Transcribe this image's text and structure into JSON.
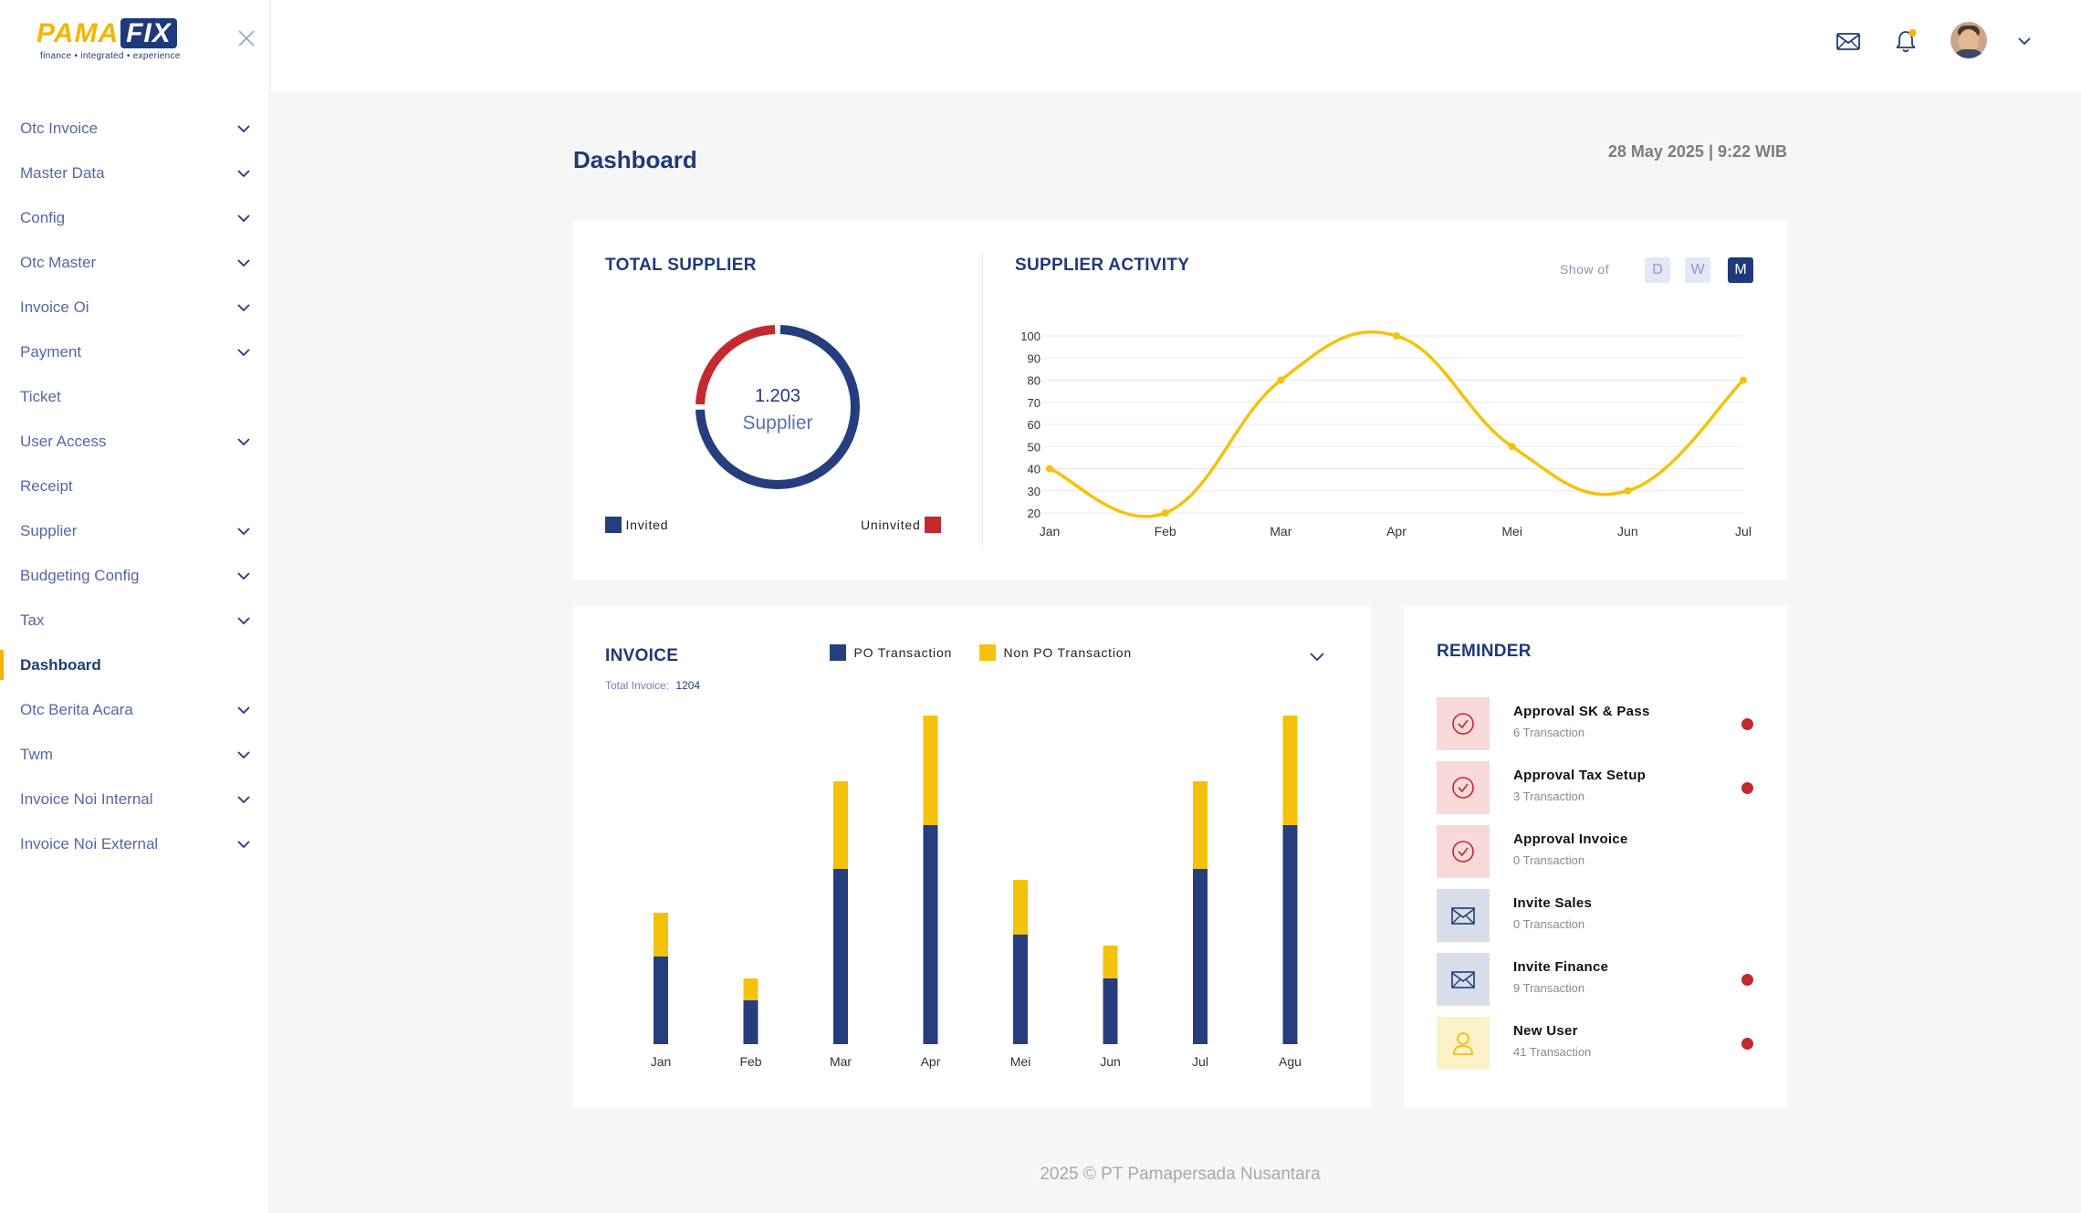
{
  "brand": {
    "name_part1": "PAMA",
    "name_part2": "FIX",
    "tagline": "finance  •  integrated  •  experience"
  },
  "sidebar": {
    "items": [
      {
        "label": "Otc Invoice",
        "expandable": true
      },
      {
        "label": "Master Data",
        "expandable": true
      },
      {
        "label": "Config",
        "expandable": true
      },
      {
        "label": "Otc Master",
        "expandable": true
      },
      {
        "label": "Invoice Oi",
        "expandable": true
      },
      {
        "label": "Payment",
        "expandable": true
      },
      {
        "label": "Ticket",
        "expandable": false
      },
      {
        "label": "User Access",
        "expandable": true
      },
      {
        "label": "Receipt",
        "expandable": false
      },
      {
        "label": "Supplier",
        "expandable": true
      },
      {
        "label": "Budgeting Config",
        "expandable": true
      },
      {
        "label": "Tax",
        "expandable": true
      },
      {
        "label": "Dashboard",
        "expandable": false,
        "active": true
      },
      {
        "label": "Otc Berita Acara",
        "expandable": true
      },
      {
        "label": "Twm",
        "expandable": true
      },
      {
        "label": "Invoice Noi Internal",
        "expandable": true
      },
      {
        "label": "Invoice Noi External",
        "expandable": true
      }
    ]
  },
  "header": {
    "icons": [
      "mail-icon",
      "bell-icon",
      "avatar",
      "chevron-down-icon"
    ]
  },
  "main": {
    "title": "Dashboard",
    "datetime": "28 May 2025 | 9:22 WIB"
  },
  "total_supplier": {
    "title": "TOTAL SUPPLIER",
    "count": "1.203",
    "unit": "Supplier",
    "legend_invited": "Invited",
    "legend_uninvited": "Uninvited",
    "invited_fraction": 0.75,
    "colors": {
      "invited": "#263d7e",
      "uninvited": "#c3292e"
    }
  },
  "supplier_activity": {
    "title": "SUPPLIER ACTIVITY",
    "show_of_label": "Show of",
    "toggles": [
      {
        "label": "D",
        "active": false
      },
      {
        "label": "W",
        "active": false
      },
      {
        "label": "M",
        "active": true
      }
    ]
  },
  "invoice": {
    "title": "INVOICE",
    "total_label": "Total Invoice:",
    "total_value": "1204",
    "legend": [
      {
        "label": "PO Transaction",
        "color": "#263d7e"
      },
      {
        "label": "Non PO Transaction",
        "color": "#f5c20b"
      }
    ]
  },
  "reminder": {
    "title": "REMINDER",
    "items": [
      {
        "title": "Approval SK & Pass",
        "sub": "6 Transaction",
        "icon": "check-circle-icon",
        "tone": "red",
        "dot": true
      },
      {
        "title": "Approval Tax Setup",
        "sub": "3 Transaction",
        "icon": "check-circle-icon",
        "tone": "red",
        "dot": true
      },
      {
        "title": "Approval Invoice",
        "sub": "0 Transaction",
        "icon": "check-circle-icon",
        "tone": "red",
        "dot": false
      },
      {
        "title": "Invite Sales",
        "sub": "0 Transaction",
        "icon": "mail-icon",
        "tone": "blue",
        "dot": false
      },
      {
        "title": "Invite Finance",
        "sub": "9 Transaction",
        "icon": "mail-icon",
        "tone": "blue",
        "dot": true
      },
      {
        "title": "New User",
        "sub": "41 Transaction",
        "icon": "user-icon",
        "tone": "yellow",
        "dot": true
      }
    ]
  },
  "footer": {
    "text": "2025 © PT Pamapersada Nusantara"
  },
  "chart_data": [
    {
      "type": "line",
      "title": "SUPPLIER ACTIVITY",
      "x": [
        "Jan",
        "Feb",
        "Mar",
        "Apr",
        "Mei",
        "Jun",
        "Jul"
      ],
      "series": [
        {
          "values": [
            40,
            20,
            80,
            100,
            50,
            30,
            80
          ],
          "color": "#f5c20b"
        }
      ],
      "ylim": [
        20,
        100
      ],
      "yticks": [
        20,
        30,
        40,
        50,
        60,
        70,
        80,
        90,
        100
      ],
      "grid": true
    },
    {
      "type": "bar",
      "title": "INVOICE",
      "stacked": true,
      "categories": [
        "Jan",
        "Feb",
        "Mar",
        "Apr",
        "Mei",
        "Jun",
        "Jul",
        "Agu"
      ],
      "series": [
        {
          "name": "PO Transaction",
          "values": [
            40,
            20,
            80,
            100,
            50,
            30,
            80,
            100
          ],
          "color": "#263d7e"
        },
        {
          "name": "Non PO Transaction",
          "values": [
            20,
            10,
            40,
            50,
            25,
            15,
            40,
            50
          ],
          "color": "#f5c20b"
        }
      ],
      "ylim": [
        0,
        160
      ],
      "grid": false
    }
  ]
}
